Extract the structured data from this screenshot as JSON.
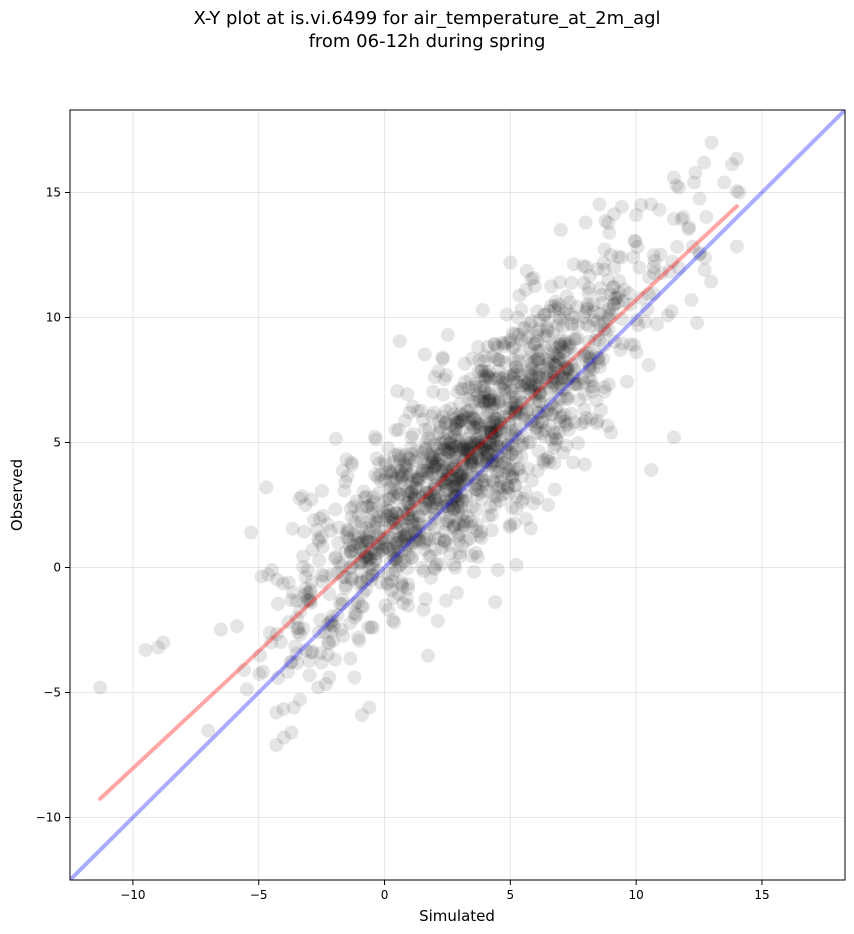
{
  "chart_data": {
    "type": "scatter",
    "title_lines": [
      "X-Y plot at is.vi.6499 for air_temperature_at_2m_agl",
      "from 06-12h during spring"
    ],
    "xlabel": "Simulated",
    "ylabel": "Observed",
    "xlim": [
      -12.5,
      18.3
    ],
    "ylim": [
      -12.5,
      18.3
    ],
    "xticks": [
      -10,
      -5,
      0,
      5,
      10,
      15
    ],
    "yticks": [
      -10,
      -5,
      0,
      5,
      10,
      15
    ],
    "xtick_labels": [
      "−10",
      "−5",
      "0",
      "5",
      "10",
      "15"
    ],
    "ytick_labels": [
      "−10",
      "−5",
      "0",
      "5",
      "10",
      "15"
    ],
    "grid": true,
    "series": [
      {
        "kind": "points",
        "color": "#000000",
        "alpha": 0.1,
        "sampled": true,
        "generator": {
          "n": 1500,
          "x_mean": 3.5,
          "x_sd": 3.6,
          "slope": 0.92,
          "intercept": 1.45,
          "residual_sd": 1.9,
          "x_range": [
            -11.3,
            14.0
          ]
        },
        "points": [
          [
            -11.3,
            -4.8
          ],
          [
            -9.5,
            -3.3
          ],
          [
            -9.0,
            -3.2
          ],
          [
            -8.8,
            -3.0
          ],
          [
            -4.3,
            -7.1
          ],
          [
            -4.0,
            -6.8
          ],
          [
            -3.7,
            -6.6
          ],
          [
            -4.3,
            -5.8
          ],
          [
            -3.6,
            -5.6
          ],
          [
            -0.9,
            -5.9
          ],
          [
            -0.6,
            -5.6
          ],
          [
            -4.7,
            3.2
          ],
          [
            -5.3,
            1.4
          ],
          [
            -2.5,
            -3.8
          ],
          [
            -1.2,
            -4.4
          ],
          [
            -2.2,
            -4.4
          ],
          [
            1.0,
            6.2
          ],
          [
            2.3,
            8.4
          ],
          [
            3.9,
            10.3
          ],
          [
            5.0,
            12.2
          ],
          [
            5.3,
            10.0
          ],
          [
            7.0,
            13.5
          ],
          [
            8.0,
            13.8
          ],
          [
            9.0,
            12.5
          ],
          [
            10.2,
            14.5
          ],
          [
            11.5,
            15.6
          ],
          [
            12.3,
            15.4
          ],
          [
            13.0,
            17.0
          ],
          [
            13.5,
            15.4
          ],
          [
            14.1,
            15.0
          ],
          [
            12.7,
            16.2
          ],
          [
            11.7,
            15.2
          ],
          [
            10.6,
            3.9
          ],
          [
            11.5,
            5.2
          ],
          [
            10.5,
            8.1
          ],
          [
            12.2,
            10.7
          ],
          [
            9.0,
            5.4
          ],
          [
            8.6,
            6.3
          ],
          [
            7.5,
            4.2
          ],
          [
            6.5,
            2.5
          ],
          [
            5.0,
            1.7
          ],
          [
            4.5,
            -0.1
          ]
        ]
      }
    ],
    "lines": [
      {
        "name": "regression",
        "color": "#ff0000",
        "alpha": 0.35,
        "x": [
          -11.3,
          14.0
        ],
        "y": [
          -9.25,
          14.45
        ]
      },
      {
        "name": "1:1",
        "color": "#0000ff",
        "alpha": 0.33,
        "x": [
          -12.5,
          18.3
        ],
        "y": [
          -12.5,
          18.3
        ]
      }
    ]
  }
}
